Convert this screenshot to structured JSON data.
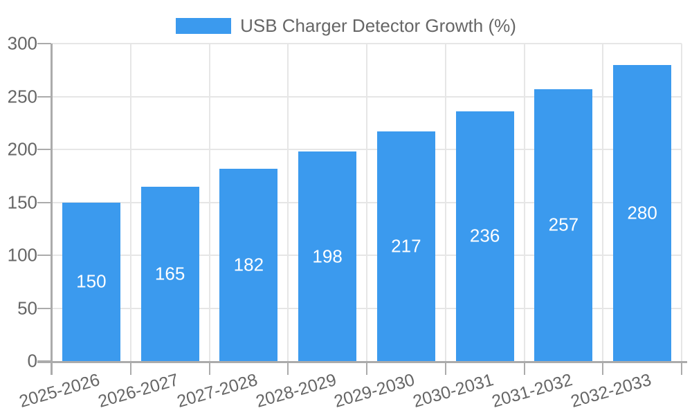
{
  "legend": {
    "label": "USB Charger Detector Growth (%)"
  },
  "chart_data": {
    "type": "bar",
    "title": "USB Charger Detector Growth (%)",
    "categories": [
      "2025-2026",
      "2026-2027",
      "2027-2028",
      "2028-2029",
      "2029-2030",
      "2030-2031",
      "2031-2032",
      "2032-2033"
    ],
    "values": [
      150,
      165,
      182,
      198,
      217,
      236,
      257,
      280
    ],
    "xlabel": "",
    "ylabel": "",
    "ylim": [
      0,
      300
    ],
    "yticks": [
      0,
      50,
      100,
      150,
      200,
      250,
      300
    ],
    "grid": true,
    "legend_position": "top",
    "value_labels": "centered-in-bar",
    "colors": {
      "bar": "#3b9aee",
      "grid_line": "#e6e6e6",
      "axis_line": "#ababab",
      "tick_label": "#666666",
      "value_label": "#ffffff"
    }
  }
}
